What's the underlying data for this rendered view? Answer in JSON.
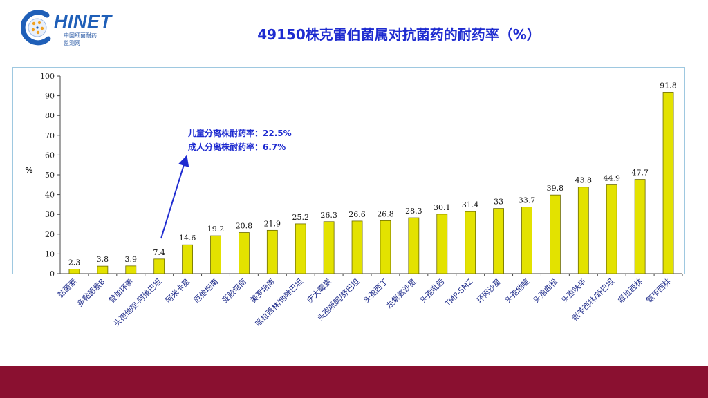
{
  "header": {
    "logo_main": "HINET",
    "logo_sub1": "中国细菌耐药",
    "logo_sub2": "监测网",
    "title": "49150株克雷伯菌属对抗菌药的耐药率（%）"
  },
  "annotation": {
    "line1": "儿童分离株耐药率：22.5%",
    "line2": "成人分离株耐药率：6.7%"
  },
  "colors": {
    "bar_fill": "#e3e200",
    "bar_stroke": "#6b6a00",
    "title": "#1e2bd0",
    "annotation": "#1e2bd0",
    "arrow": "#1e2bd0",
    "footer": "#8a1030"
  },
  "chart_data": {
    "type": "bar",
    "ylabel": "%",
    "ylim": [
      0,
      100
    ],
    "yticks": [
      0,
      10,
      20,
      30,
      40,
      50,
      60,
      70,
      80,
      90,
      100
    ],
    "grid": false,
    "categories": [
      "黏菌素",
      "多黏菌素B",
      "替加环素",
      "头孢他啶-阿维巴坦",
      "阿米卡星",
      "厄他培南",
      "亚胺培南",
      "美罗培南",
      "哌拉西林/他唑巴坦",
      "庆大霉素",
      "头孢哌酮/舒巴坦",
      "头孢西丁",
      "左氧氟沙星",
      "头孢吡肟",
      "TMP-SMZ",
      "环丙沙星",
      "头孢他啶",
      "头孢曲松",
      "头孢呋辛",
      "氨苄西林/舒巴坦",
      "哌拉西林",
      "氨苄西林"
    ],
    "values": [
      2.3,
      3.8,
      3.9,
      7.4,
      14.6,
      19.2,
      20.8,
      21.9,
      25.2,
      26.3,
      26.6,
      26.8,
      28.3,
      30.1,
      31.4,
      33,
      33.7,
      39.8,
      43.8,
      44.9,
      47.7,
      91.8
    ],
    "value_labels": [
      "2.3",
      "3.8",
      "3.9",
      "7.4",
      "14.6",
      "19.2",
      "20.8",
      "21.9",
      "25.2",
      "26.3",
      "26.6",
      "26.8",
      "28.3",
      "30.1",
      "31.4",
      "33",
      "33.7",
      "39.8",
      "43.8",
      "44.9",
      "47.7",
      "91.8"
    ]
  }
}
